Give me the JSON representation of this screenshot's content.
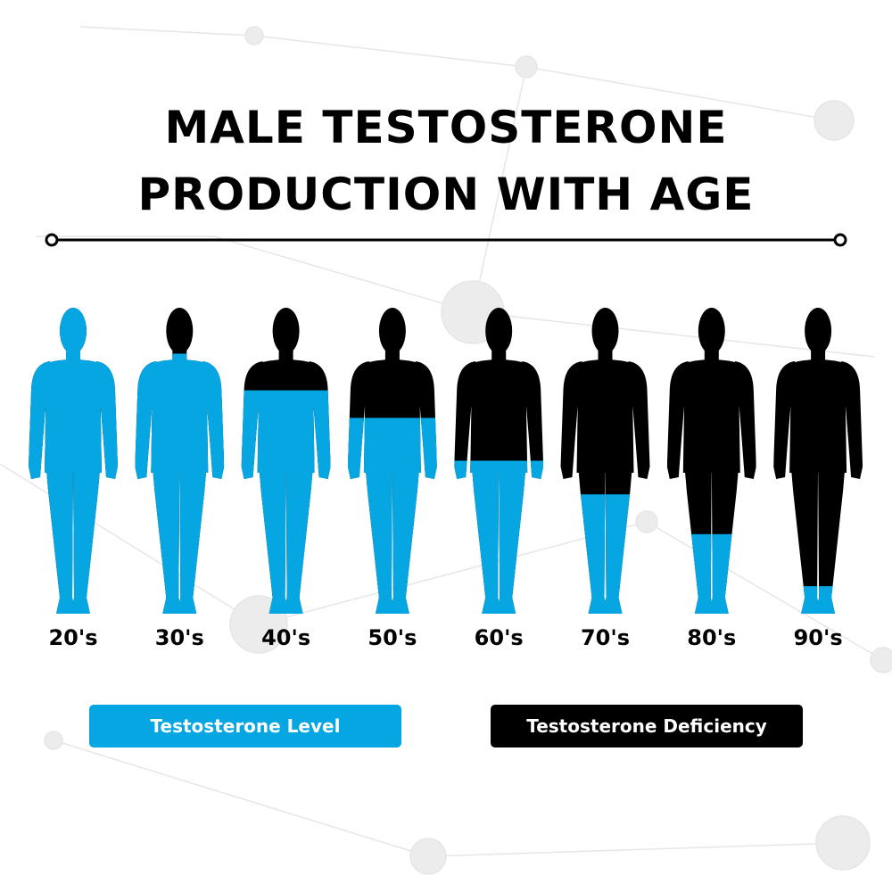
{
  "title": [
    "MALE TESTOSTERONE",
    "PRODUCTION WITH AGE"
  ],
  "figures": [
    {
      "label": "20's",
      "level": 100
    },
    {
      "label": "30's",
      "level": 85
    },
    {
      "label": "40's",
      "level": 73
    },
    {
      "label": "50's",
      "level": 64
    },
    {
      "label": "60's",
      "level": 50
    },
    {
      "label": "70's",
      "level": 39
    },
    {
      "label": "80's",
      "level": 26
    },
    {
      "label": "90's",
      "level": 9
    }
  ],
  "legend": [
    {
      "label": "Testosterone Level",
      "color": "#05a6e1"
    },
    {
      "label": "Testosterone Deficiency",
      "color": "#000000"
    }
  ]
}
